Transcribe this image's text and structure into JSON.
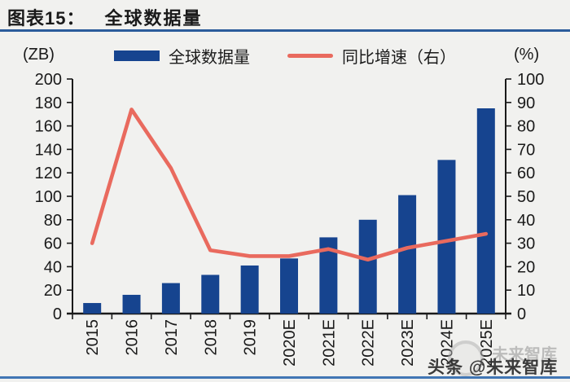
{
  "header": {
    "label": "图表15：",
    "title": "全球数据量"
  },
  "legend": {
    "bar_label": "全球数据量",
    "line_label": "同比增速（右）"
  },
  "chart_data": {
    "type": "combo",
    "categories": [
      "2015",
      "2016",
      "2017",
      "2018",
      "2019",
      "2020E",
      "2021E",
      "2022E",
      "2023E",
      "2024E",
      "2025E"
    ],
    "series": [
      {
        "name": "全球数据量",
        "type": "bar",
        "axis": "left",
        "color": "#16448f",
        "values": [
          9,
          16,
          26,
          33,
          41,
          47,
          65,
          80,
          101,
          131,
          175
        ]
      },
      {
        "name": "同比增速（右）",
        "type": "line",
        "axis": "right",
        "color": "#e96a5e",
        "values": [
          30,
          87,
          62,
          27,
          24.5,
          24.5,
          27.5,
          23,
          28,
          31,
          34
        ]
      }
    ],
    "left_axis": {
      "label": "(ZB)",
      "min": 0,
      "max": 200,
      "step": 20
    },
    "right_axis": {
      "label": "(%)",
      "min": 0,
      "max": 100,
      "step": 10
    },
    "grid": false,
    "legend_position": "top"
  },
  "watermark": {
    "text": "头条 @未来智库",
    "ghost": "未来智库"
  },
  "colors": {
    "bar": "#16448f",
    "line": "#e96a5e",
    "title_rule": "#2b5c9b",
    "bottom_rule": "#4176b4",
    "background": "#f1f1ef",
    "axis": "#1a1a1a"
  }
}
